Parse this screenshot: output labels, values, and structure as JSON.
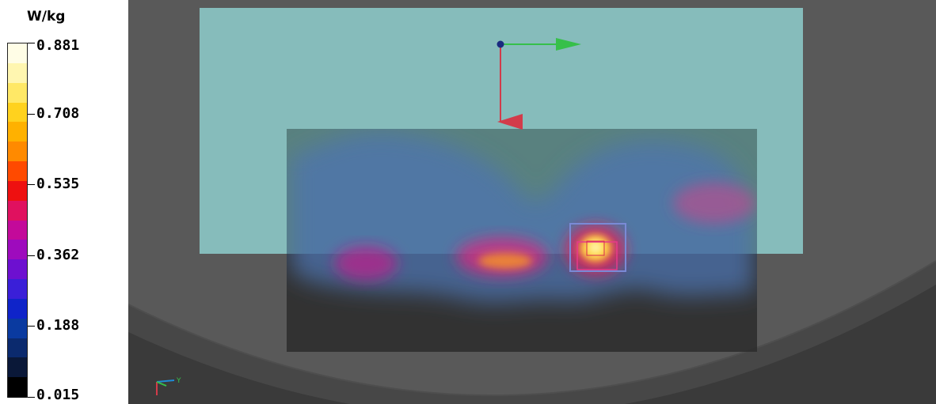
{
  "legend": {
    "unit": "W/kg",
    "ticks": [
      "0.881",
      "0.708",
      "0.535",
      "0.362",
      "0.188",
      "0.015"
    ],
    "colorbar_colors": [
      "#fffde6",
      "#fff6b0",
      "#ffe866",
      "#ffd21e",
      "#ffb100",
      "#ff8a00",
      "#ff4a00",
      "#ee1010",
      "#e0115f",
      "#c30a9a",
      "#9e0bbd",
      "#6d10d0",
      "#3a1fd8",
      "#0f24c9",
      "#0a3aa0",
      "#0b2a6e",
      "#0a1838",
      "#000000"
    ]
  },
  "viewport": {
    "axis_label": "Y",
    "colors": {
      "background": "#595959",
      "phantom_shell": "#474747",
      "phantom_inner": "#393939",
      "device": "#86bcbb",
      "measurement_area": "#2f2f2f",
      "probe_marker": "#e83a8a"
    }
  }
}
